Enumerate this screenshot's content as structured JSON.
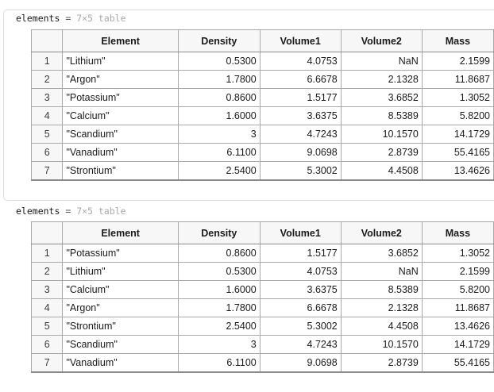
{
  "outputs": [
    {
      "var_name": "elements",
      "equals": "=",
      "size_desc": "7×5 table",
      "columns": [
        "Element",
        "Density",
        "Volume1",
        "Volume2",
        "Mass"
      ],
      "rows": [
        {
          "idx": "1",
          "Element": "\"Lithium\"",
          "Density": "0.5300",
          "Volume1": "4.0753",
          "Volume2": "NaN",
          "Mass": "2.1599"
        },
        {
          "idx": "2",
          "Element": "\"Argon\"",
          "Density": "1.7800",
          "Volume1": "6.6678",
          "Volume2": "2.1328",
          "Mass": "11.8687"
        },
        {
          "idx": "3",
          "Element": "\"Potassium\"",
          "Density": "0.8600",
          "Volume1": "1.5177",
          "Volume2": "3.6852",
          "Mass": "1.3052"
        },
        {
          "idx": "4",
          "Element": "\"Calcium\"",
          "Density": "1.6000",
          "Volume1": "3.6375",
          "Volume2": "8.5389",
          "Mass": "5.8200"
        },
        {
          "idx": "5",
          "Element": "\"Scandium\"",
          "Density": "3",
          "Volume1": "4.7243",
          "Volume2": "10.1570",
          "Mass": "14.1729"
        },
        {
          "idx": "6",
          "Element": "\"Vanadium\"",
          "Density": "6.1100",
          "Volume1": "9.0698",
          "Volume2": "2.8739",
          "Mass": "55.4165"
        },
        {
          "idx": "7",
          "Element": "\"Strontium\"",
          "Density": "2.5400",
          "Volume1": "5.3002",
          "Volume2": "4.4508",
          "Mass": "13.4626"
        }
      ]
    },
    {
      "var_name": "elements",
      "equals": "=",
      "size_desc": "7×5 table",
      "columns": [
        "Element",
        "Density",
        "Volume1",
        "Volume2",
        "Mass"
      ],
      "rows": [
        {
          "idx": "1",
          "Element": "\"Potassium\"",
          "Density": "0.8600",
          "Volume1": "1.5177",
          "Volume2": "3.6852",
          "Mass": "1.3052"
        },
        {
          "idx": "2",
          "Element": "\"Lithium\"",
          "Density": "0.5300",
          "Volume1": "4.0753",
          "Volume2": "NaN",
          "Mass": "2.1599"
        },
        {
          "idx": "3",
          "Element": "\"Calcium\"",
          "Density": "1.6000",
          "Volume1": "3.6375",
          "Volume2": "8.5389",
          "Mass": "5.8200"
        },
        {
          "idx": "4",
          "Element": "\"Argon\"",
          "Density": "1.7800",
          "Volume1": "6.6678",
          "Volume2": "2.1328",
          "Mass": "11.8687"
        },
        {
          "idx": "5",
          "Element": "\"Strontium\"",
          "Density": "2.5400",
          "Volume1": "5.3002",
          "Volume2": "4.4508",
          "Mass": "13.4626"
        },
        {
          "idx": "6",
          "Element": "\"Scandium\"",
          "Density": "3",
          "Volume1": "4.7243",
          "Volume2": "10.1570",
          "Mass": "14.1729"
        },
        {
          "idx": "7",
          "Element": "\"Vanadium\"",
          "Density": "6.1100",
          "Volume1": "9.0698",
          "Volume2": "2.8739",
          "Mass": "55.4165"
        }
      ]
    }
  ]
}
